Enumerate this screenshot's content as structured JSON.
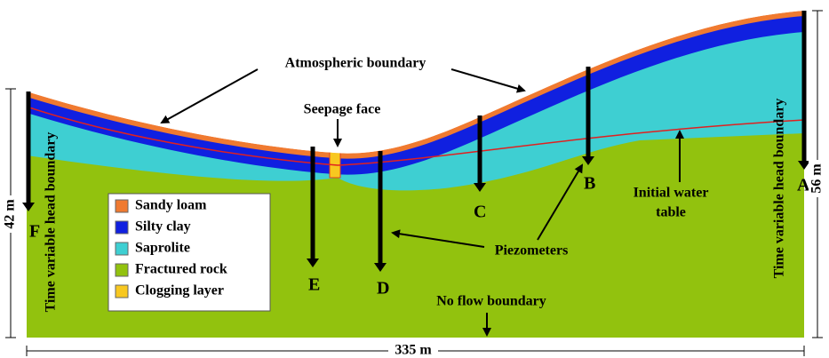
{
  "annotations": {
    "atmospheric_boundary": "Atmospheric boundary",
    "seepage_face": "Seepage face",
    "piezometers": "Piezometers",
    "initial_water_table": [
      "Initial water",
      "table"
    ],
    "no_flow_boundary": "No flow boundary",
    "left_boundary": "Time variable head boundary",
    "right_boundary": "Time variable head boundary"
  },
  "legend": [
    "Sandy loam",
    "Silty clay",
    "Saprolite",
    "Fractured rock",
    "Clogging layer"
  ],
  "piezometer_labels": [
    "A",
    "B",
    "C",
    "D",
    "E",
    "F"
  ],
  "dimensions": {
    "left_height": "42 m",
    "right_height": "56 m",
    "width": "335 m"
  }
}
